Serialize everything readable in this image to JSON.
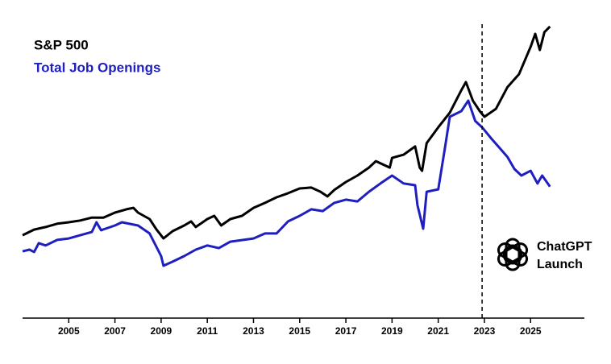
{
  "chart_data": {
    "type": "line",
    "series": [
      {
        "name": "S&P 500",
        "color": "#000000",
        "x": [
          2003,
          2003.5,
          2004,
          2004.5,
          2005,
          2005.5,
          2006,
          2006.5,
          2007,
          2007.5,
          2007.8,
          2008,
          2008.5,
          2008.8,
          2009.1,
          2009.5,
          2010,
          2010.3,
          2010.5,
          2011,
          2011.3,
          2011.6,
          2012,
          2012.5,
          2013,
          2013.5,
          2014,
          2014.5,
          2015,
          2015.5,
          2015.9,
          2016.2,
          2016.5,
          2017,
          2017.5,
          2018,
          2018.3,
          2018.9,
          2019,
          2019.5,
          2020,
          2020.2,
          2020.3,
          2020.5,
          2021,
          2021.5,
          2022,
          2022.2,
          2022.5,
          2022.8,
          2023,
          2023.5,
          2024,
          2024.5,
          2025,
          2025.2,
          2025.4,
          2025.6,
          2025.84
        ],
        "values": [
          28.2,
          30.1,
          31.0,
          32.1,
          32.6,
          33.2,
          34.2,
          34.2,
          35.9,
          37.0,
          37.5,
          35.9,
          33.7,
          30.1,
          27.1,
          29.6,
          31.5,
          32.9,
          31.0,
          33.7,
          34.8,
          31.5,
          33.7,
          34.8,
          37.5,
          39.2,
          41.1,
          42.5,
          44.1,
          44.4,
          43.0,
          41.4,
          43.6,
          46.3,
          48.5,
          51.2,
          53.4,
          51.2,
          54.5,
          55.6,
          58.4,
          51.2,
          50.1,
          59.5,
          64.9,
          69.9,
          77.5,
          80.3,
          74.0,
          70.4,
          68.5,
          71.2,
          78.6,
          83.0,
          92.3,
          96.7,
          91.2,
          97.3,
          99.2
        ]
      },
      {
        "name": "Total Job Openings",
        "color": "#1f1fbf",
        "x": [
          2003,
          2003.3,
          2003.5,
          2003.7,
          2004,
          2004.5,
          2005,
          2005.5,
          2006,
          2006.2,
          2006.4,
          2007,
          2007.3,
          2008,
          2008.5,
          2009,
          2009.1,
          2009.5,
          2010,
          2010.5,
          2011,
          2011.5,
          2012,
          2013,
          2013.5,
          2014,
          2014.5,
          2015,
          2015.5,
          2016,
          2016.5,
          2017,
          2017.5,
          2018,
          2018.5,
          2019,
          2019.5,
          2020,
          2020.1,
          2020.35,
          2020.5,
          2021,
          2021.3,
          2021.5,
          2022,
          2022.3,
          2022.6,
          2022.9,
          2023.3,
          2023.6,
          2024,
          2024.3,
          2024.6,
          2025,
          2025.3,
          2025.5,
          2025.84
        ],
        "values": [
          22.7,
          23.3,
          22.5,
          25.5,
          24.7,
          26.6,
          27.1,
          28.2,
          29.3,
          32.6,
          29.9,
          31.5,
          32.6,
          31.5,
          28.8,
          21.1,
          17.8,
          19.2,
          21.1,
          23.3,
          24.7,
          23.8,
          26.0,
          27.1,
          28.8,
          28.8,
          32.9,
          34.8,
          37.0,
          36.4,
          39.2,
          40.3,
          39.7,
          43.0,
          45.8,
          48.5,
          45.8,
          45.2,
          38.4,
          30.4,
          43.0,
          43.8,
          58.4,
          68.5,
          70.4,
          74.0,
          67.1,
          64.9,
          61.1,
          58.4,
          54.8,
          50.7,
          48.5,
          50.1,
          45.8,
          48.5,
          44.7
        ]
      }
    ],
    "xlim": [
      2003,
      2027.33
    ],
    "xticks": [
      2005,
      2007,
      2009,
      2011,
      2013,
      2015,
      2017,
      2019,
      2021,
      2023,
      2025
    ],
    "ylim": [
      0,
      100
    ],
    "annotation": {
      "x": 2022.9,
      "text": [
        "ChatGPT",
        "Launch"
      ]
    }
  }
}
